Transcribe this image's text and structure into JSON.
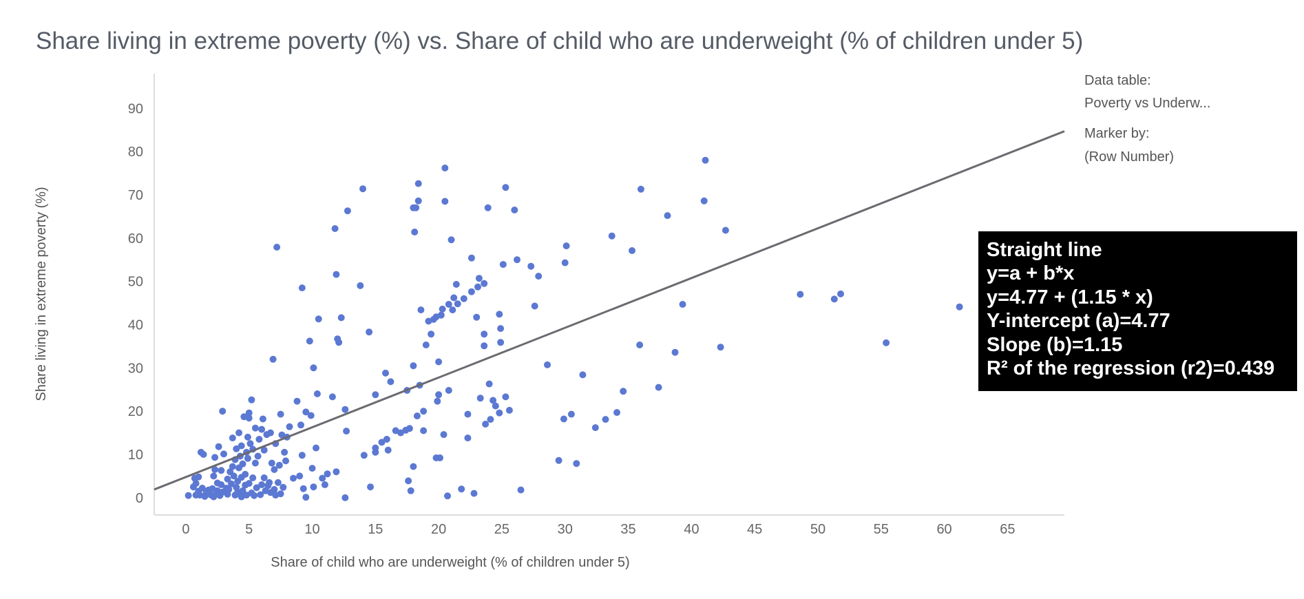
{
  "chart_data": {
    "type": "scatter",
    "title": "Share living in extreme poverty (%) vs. Share of child who are underweight (% of children under 5)",
    "xlabel": "Share of child who are underweight (% of children under 5)",
    "ylabel": "Share living in extreme poverty (%)",
    "xlim": [
      -2.5,
      69.5
    ],
    "ylim": [
      -4,
      98
    ],
    "xticks": [
      0,
      5,
      10,
      15,
      20,
      25,
      30,
      35,
      40,
      45,
      50,
      55,
      60,
      65
    ],
    "yticks": [
      0,
      10,
      20,
      30,
      40,
      50,
      60,
      70,
      80,
      90
    ],
    "grid": false,
    "marker_color": "#5b78d2",
    "line_color": "#6a6a70",
    "regression": {
      "intercept": 4.77,
      "slope": 1.15,
      "r2": 0.439,
      "lines": [
        "Straight line",
        "y=a + b*x",
        "y=4.77 + (1.15 * x)",
        "Y-intercept (a)=4.77",
        "Slope (b)=1.15",
        "R² of the regression (r2)=0.439"
      ]
    },
    "points": [
      [
        0.2,
        0.5
      ],
      [
        0.6,
        2.5
      ],
      [
        0.7,
        4.5
      ],
      [
        0.8,
        3.3
      ],
      [
        0.8,
        0.6
      ],
      [
        1.0,
        1.5
      ],
      [
        1.0,
        4.8
      ],
      [
        1.1,
        0.6
      ],
      [
        1.2,
        10.5
      ],
      [
        1.3,
        2.2
      ],
      [
        1.4,
        10.0
      ],
      [
        1.5,
        0.3
      ],
      [
        1.6,
        1.0
      ],
      [
        1.8,
        1.8
      ],
      [
        2.0,
        0.6
      ],
      [
        2.1,
        2.1
      ],
      [
        2.2,
        0.2
      ],
      [
        2.2,
        5.0
      ],
      [
        2.3,
        6.5
      ],
      [
        2.3,
        9.3
      ],
      [
        2.4,
        0.8
      ],
      [
        2.5,
        1.6
      ],
      [
        2.5,
        3.4
      ],
      [
        2.6,
        11.8
      ],
      [
        2.7,
        0.5
      ],
      [
        2.8,
        3.0
      ],
      [
        2.8,
        6.3
      ],
      [
        2.9,
        1.3
      ],
      [
        3.0,
        10.1
      ],
      [
        2.9,
        20.0
      ],
      [
        3.2,
        2.2
      ],
      [
        3.3,
        0.8
      ],
      [
        3.3,
        4.3
      ],
      [
        3.4,
        1.9
      ],
      [
        3.5,
        6.0
      ],
      [
        3.6,
        3.2
      ],
      [
        3.7,
        7.2
      ],
      [
        3.7,
        13.8
      ],
      [
        3.8,
        5.0
      ],
      [
        3.9,
        0.6
      ],
      [
        3.9,
        8.8
      ],
      [
        4.0,
        2.4
      ],
      [
        4.0,
        11.3
      ],
      [
        4.1,
        1.3
      ],
      [
        4.1,
        3.8
      ],
      [
        4.2,
        6.9
      ],
      [
        4.2,
        15.0
      ],
      [
        4.3,
        9.6
      ],
      [
        4.4,
        0.2
      ],
      [
        4.4,
        4.7
      ],
      [
        4.4,
        12.0
      ],
      [
        4.5,
        1.6
      ],
      [
        4.5,
        7.8
      ],
      [
        4.6,
        18.7
      ],
      [
        4.7,
        2.9
      ],
      [
        4.7,
        5.4
      ],
      [
        4.8,
        0.6
      ],
      [
        4.8,
        10.5
      ],
      [
        4.9,
        9.1
      ],
      [
        4.9,
        14.0
      ],
      [
        5.0,
        18.4
      ],
      [
        5.0,
        3.3
      ],
      [
        5.0,
        19.6
      ],
      [
        5.1,
        12.5
      ],
      [
        5.2,
        1.1
      ],
      [
        5.2,
        22.6
      ],
      [
        5.3,
        4.6
      ],
      [
        5.3,
        11.2
      ],
      [
        5.4,
        0.5
      ],
      [
        5.5,
        8.0
      ],
      [
        5.5,
        16.1
      ],
      [
        5.6,
        2.3
      ],
      [
        5.7,
        9.6
      ],
      [
        5.8,
        13.5
      ],
      [
        5.9,
        0.7
      ],
      [
        6.0,
        3.0
      ],
      [
        6.0,
        15.8
      ],
      [
        6.1,
        18.2
      ],
      [
        6.2,
        11.0
      ],
      [
        6.2,
        4.6
      ],
      [
        6.3,
        1.6
      ],
      [
        6.4,
        14.6
      ],
      [
        6.5,
        2.8
      ],
      [
        6.6,
        3.5
      ],
      [
        6.7,
        1.2
      ],
      [
        6.7,
        15.0
      ],
      [
        6.8,
        8.0
      ],
      [
        6.9,
        32.0
      ],
      [
        7.0,
        1.9
      ],
      [
        7.0,
        6.5
      ],
      [
        7.1,
        0.6
      ],
      [
        7.1,
        12.5
      ],
      [
        7.2,
        57.9
      ],
      [
        7.3,
        3.5
      ],
      [
        7.4,
        7.5
      ],
      [
        7.5,
        19.3
      ],
      [
        7.5,
        0.9
      ],
      [
        7.6,
        14.5
      ],
      [
        7.7,
        2.4
      ],
      [
        7.8,
        10.5
      ],
      [
        7.9,
        8.5
      ],
      [
        8.0,
        14.0
      ],
      [
        8.2,
        16.4
      ],
      [
        8.5,
        4.5
      ],
      [
        8.8,
        22.3
      ],
      [
        9.0,
        5.0
      ],
      [
        9.1,
        16.8
      ],
      [
        9.2,
        9.8
      ],
      [
        9.2,
        48.5
      ],
      [
        9.3,
        2.1
      ],
      [
        9.5,
        0.1
      ],
      [
        9.5,
        19.8
      ],
      [
        9.8,
        36.2
      ],
      [
        9.9,
        19.0
      ],
      [
        10.0,
        6.8
      ],
      [
        10.1,
        2.5
      ],
      [
        10.1,
        30.0
      ],
      [
        10.3,
        11.5
      ],
      [
        10.4,
        24.0
      ],
      [
        10.5,
        41.3
      ],
      [
        10.8,
        4.5
      ],
      [
        11.0,
        3.0
      ],
      [
        11.2,
        5.5
      ],
      [
        11.6,
        23.3
      ],
      [
        11.8,
        62.2
      ],
      [
        11.9,
        51.6
      ],
      [
        11.9,
        6.0
      ],
      [
        12.0,
        36.7
      ],
      [
        12.1,
        35.9
      ],
      [
        12.3,
        41.6
      ],
      [
        12.6,
        20.4
      ],
      [
        12.6,
        0.0
      ],
      [
        12.7,
        15.4
      ],
      [
        12.8,
        66.3
      ],
      [
        13.8,
        49.0
      ],
      [
        14.0,
        71.4
      ],
      [
        14.1,
        9.8
      ],
      [
        14.5,
        38.3
      ],
      [
        14.6,
        2.5
      ],
      [
        15.0,
        10.5
      ],
      [
        15.0,
        11.5
      ],
      [
        15.0,
        23.8
      ],
      [
        15.5,
        12.8
      ],
      [
        15.8,
        28.8
      ],
      [
        15.9,
        13.5
      ],
      [
        16.0,
        11.0
      ],
      [
        16.2,
        26.8
      ],
      [
        16.6,
        15.5
      ],
      [
        17.0,
        15.0
      ],
      [
        17.4,
        15.6
      ],
      [
        17.5,
        24.8
      ],
      [
        17.6,
        3.9
      ],
      [
        17.7,
        16.0
      ],
      [
        17.8,
        1.6
      ],
      [
        18.0,
        7.2
      ],
      [
        18.0,
        30.5
      ],
      [
        18.0,
        67.0
      ],
      [
        18.1,
        61.4
      ],
      [
        18.2,
        67.0
      ],
      [
        18.3,
        18.9
      ],
      [
        18.4,
        68.6
      ],
      [
        18.4,
        72.6
      ],
      [
        18.5,
        26.0
      ],
      [
        18.6,
        43.4
      ],
      [
        18.8,
        20.0
      ],
      [
        18.8,
        15.5
      ],
      [
        19.0,
        35.3
      ],
      [
        19.2,
        40.8
      ],
      [
        19.4,
        37.8
      ],
      [
        19.6,
        41.2
      ],
      [
        19.8,
        41.8
      ],
      [
        19.8,
        9.2
      ],
      [
        19.9,
        22.3
      ],
      [
        20.0,
        23.8
      ],
      [
        20.0,
        31.4
      ],
      [
        20.1,
        9.2
      ],
      [
        20.2,
        42.2
      ],
      [
        20.3,
        43.6
      ],
      [
        20.4,
        14.6
      ],
      [
        20.5,
        68.5
      ],
      [
        20.5,
        76.2
      ],
      [
        20.7,
        0.4
      ],
      [
        20.8,
        44.7
      ],
      [
        20.8,
        24.8
      ],
      [
        21.0,
        59.6
      ],
      [
        21.1,
        43.4
      ],
      [
        21.2,
        46.2
      ],
      [
        21.4,
        49.3
      ],
      [
        21.5,
        44.8
      ],
      [
        21.8,
        2.0
      ],
      [
        22.0,
        46.0
      ],
      [
        22.3,
        13.8
      ],
      [
        22.3,
        19.3
      ],
      [
        22.6,
        47.6
      ],
      [
        22.6,
        55.4
      ],
      [
        22.8,
        1.0
      ],
      [
        23.0,
        41.7
      ],
      [
        23.1,
        48.7
      ],
      [
        23.2,
        50.7
      ],
      [
        23.3,
        23.0
      ],
      [
        23.6,
        49.5
      ],
      [
        23.6,
        37.8
      ],
      [
        23.6,
        35.1
      ],
      [
        23.7,
        17.0
      ],
      [
        23.9,
        67.0
      ],
      [
        24.0,
        26.3
      ],
      [
        24.1,
        18.1
      ],
      [
        24.3,
        22.5
      ],
      [
        24.5,
        21.2
      ],
      [
        24.8,
        19.6
      ],
      [
        24.8,
        42.4
      ],
      [
        24.9,
        39.1
      ],
      [
        24.9,
        35.9
      ],
      [
        25.1,
        53.9
      ],
      [
        25.3,
        23.3
      ],
      [
        25.3,
        71.7
      ],
      [
        25.6,
        20.2
      ],
      [
        26.0,
        66.5
      ],
      [
        26.2,
        55.0
      ],
      [
        26.5,
        1.8
      ],
      [
        27.3,
        53.5
      ],
      [
        27.6,
        44.3
      ],
      [
        27.9,
        51.2
      ],
      [
        28.6,
        30.7
      ],
      [
        29.5,
        8.6
      ],
      [
        29.9,
        18.2
      ],
      [
        30.0,
        54.3
      ],
      [
        30.1,
        58.2
      ],
      [
        30.5,
        19.3
      ],
      [
        30.9,
        7.9
      ],
      [
        31.4,
        28.4
      ],
      [
        32.4,
        16.2
      ],
      [
        33.2,
        18.1
      ],
      [
        33.7,
        60.5
      ],
      [
        34.1,
        19.7
      ],
      [
        34.6,
        24.6
      ],
      [
        35.3,
        57.1
      ],
      [
        35.9,
        35.3
      ],
      [
        36.0,
        71.3
      ],
      [
        37.4,
        25.5
      ],
      [
        38.1,
        65.2
      ],
      [
        38.7,
        33.6
      ],
      [
        39.3,
        44.7
      ],
      [
        41.0,
        68.6
      ],
      [
        41.1,
        78.0
      ],
      [
        42.3,
        34.8
      ],
      [
        42.7,
        61.8
      ],
      [
        48.6,
        47.0
      ],
      [
        51.3,
        45.9
      ],
      [
        51.8,
        47.1
      ],
      [
        55.4,
        35.8
      ],
      [
        61.2,
        44.1
      ]
    ]
  },
  "panel": {
    "data_table_label": "Data table:",
    "data_table_value": "Poverty vs Underw...",
    "marker_by_label": "Marker by:",
    "marker_by_value": "(Row Number)"
  }
}
